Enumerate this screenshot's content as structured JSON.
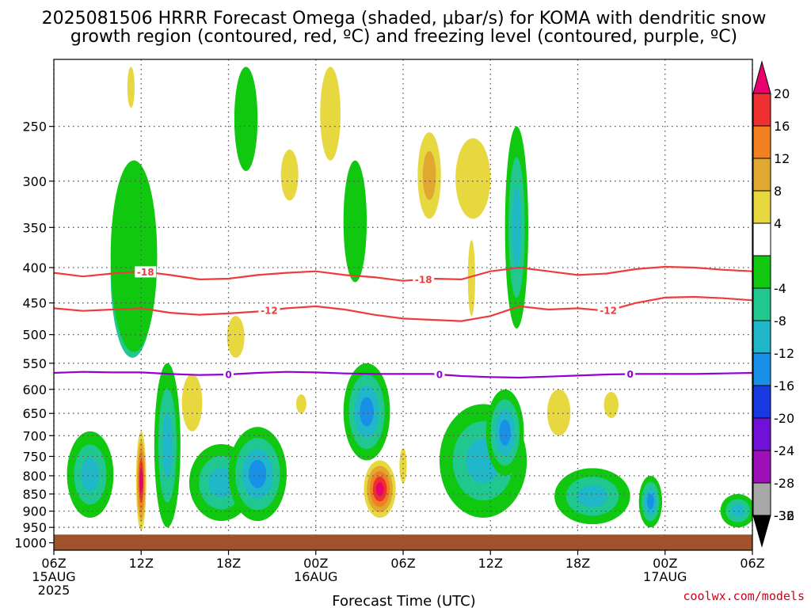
{
  "title_line1": "2025081506 HRRR Forecast Omega (shaded, μbar/s) for KOMA with dendritic snow",
  "title_line2": "growth region (contoured, red, ºC) and freezing level (contoured, purple, ºC)",
  "xlabel": "Forecast Time (UTC)",
  "credit": "coolwx.com/models",
  "colors": {
    "terrain": "#a0522d",
    "temp_contour": "#ee3b3b",
    "freezing_contour": "#9400d3",
    "grid": "#555555"
  },
  "chart_data": {
    "type": "heatmap",
    "x_ticks": [
      {
        "hour": 0,
        "lines": [
          "06Z",
          "15AUG",
          "2025"
        ]
      },
      {
        "hour": 6,
        "lines": [
          "12Z"
        ]
      },
      {
        "hour": 12,
        "lines": [
          "18Z"
        ]
      },
      {
        "hour": 18,
        "lines": [
          "00Z",
          "16AUG"
        ]
      },
      {
        "hour": 24,
        "lines": [
          "06Z"
        ]
      },
      {
        "hour": 30,
        "lines": [
          "12Z"
        ]
      },
      {
        "hour": 36,
        "lines": [
          "18Z"
        ]
      },
      {
        "hour": 42,
        "lines": [
          "00Z",
          "17AUG"
        ]
      },
      {
        "hour": 48,
        "lines": [
          "06Z"
        ]
      }
    ],
    "xlim": [
      0,
      48
    ],
    "ylim_hpa": [
      1025,
      200
    ],
    "y_scale": "log-pressure",
    "y_ticks": [
      250,
      300,
      350,
      400,
      450,
      500,
      550,
      600,
      650,
      700,
      750,
      800,
      850,
      900,
      950,
      1000
    ],
    "grid": true,
    "colorbar": {
      "labels": [
        "20",
        "16",
        "12",
        "8",
        "4",
        "-4",
        "-8",
        "-12",
        "-16",
        "-20",
        "-24",
        "-28",
        "-32",
        "-36"
      ],
      "colors": [
        "#e8006e",
        "#ee3030",
        "#f08020",
        "#e0a830",
        "#e8d840",
        "#ffffff",
        "#10c810",
        "#20c890",
        "#20b8c8",
        "#1890e8",
        "#1838e0",
        "#7010d8",
        "#a010b8",
        "#a8a8a8",
        "#000000"
      ]
    },
    "contours": [
      {
        "name": "-18",
        "color_key": "temp_contour",
        "label_hours": [
          6.3,
          25.4
        ],
        "points": [
          [
            0,
            407
          ],
          [
            2,
            412
          ],
          [
            4,
            408
          ],
          [
            6,
            405
          ],
          [
            8,
            410
          ],
          [
            10,
            416
          ],
          [
            12,
            415
          ],
          [
            14,
            410
          ],
          [
            16,
            407
          ],
          [
            18,
            405
          ],
          [
            20,
            410
          ],
          [
            22,
            413
          ],
          [
            24,
            418
          ],
          [
            26,
            415
          ],
          [
            28,
            416
          ],
          [
            30,
            405
          ],
          [
            32,
            400
          ],
          [
            34,
            405
          ],
          [
            36,
            410
          ],
          [
            38,
            408
          ],
          [
            40,
            402
          ],
          [
            42,
            399
          ],
          [
            44,
            400
          ],
          [
            46,
            403
          ],
          [
            48,
            405
          ]
        ]
      },
      {
        "name": "-12",
        "color_key": "temp_contour",
        "label_hours": [
          14.8,
          38.1
        ],
        "points": [
          [
            0,
            458
          ],
          [
            2,
            462
          ],
          [
            4,
            460
          ],
          [
            6,
            458
          ],
          [
            8,
            465
          ],
          [
            10,
            468
          ],
          [
            12,
            466
          ],
          [
            14,
            463
          ],
          [
            16,
            458
          ],
          [
            18,
            455
          ],
          [
            20,
            460
          ],
          [
            22,
            468
          ],
          [
            24,
            474
          ],
          [
            26,
            476
          ],
          [
            28,
            478
          ],
          [
            30,
            470
          ],
          [
            32,
            455
          ],
          [
            34,
            460
          ],
          [
            36,
            458
          ],
          [
            38,
            462
          ],
          [
            40,
            450
          ],
          [
            42,
            442
          ],
          [
            44,
            441
          ],
          [
            46,
            443
          ],
          [
            48,
            446
          ]
        ]
      },
      {
        "name": "0",
        "color_key": "freezing_contour",
        "label_hours": [
          12.0,
          26.5,
          39.6
        ],
        "points": [
          [
            0,
            568
          ],
          [
            2,
            566
          ],
          [
            4,
            567
          ],
          [
            6,
            567
          ],
          [
            8,
            570
          ],
          [
            10,
            572
          ],
          [
            12,
            571
          ],
          [
            14,
            568
          ],
          [
            16,
            566
          ],
          [
            18,
            567
          ],
          [
            20,
            569
          ],
          [
            22,
            570
          ],
          [
            24,
            570
          ],
          [
            26,
            570
          ],
          [
            28,
            574
          ],
          [
            30,
            576
          ],
          [
            32,
            577
          ],
          [
            34,
            575
          ],
          [
            36,
            573
          ],
          [
            38,
            571
          ],
          [
            40,
            570
          ],
          [
            42,
            570
          ],
          [
            44,
            570
          ],
          [
            46,
            569
          ],
          [
            48,
            568
          ]
        ]
      }
    ],
    "omega_features": [
      {
        "hour": 5.4,
        "p_bottom": 540,
        "p_top": 310,
        "halfwidth": 1.5,
        "levels": [
          -8,
          -12,
          -16,
          -20,
          -24,
          -28,
          -32,
          -36
        ]
      },
      {
        "hour": 5.5,
        "p_bottom": 530,
        "p_top": 280,
        "halfwidth": 1.6,
        "levels": [
          -4
        ]
      },
      {
        "hour": 6.0,
        "p_bottom": 960,
        "p_top": 690,
        "halfwidth": 0.35,
        "levels": [
          4,
          8,
          12,
          16,
          20
        ]
      },
      {
        "hour": 2.5,
        "p_bottom": 920,
        "p_top": 690,
        "halfwidth": 1.6,
        "levels": [
          -4,
          -8,
          -12
        ]
      },
      {
        "hour": 7.8,
        "p_bottom": 950,
        "p_top": 550,
        "halfwidth": 0.9,
        "levels": [
          -4,
          -8,
          -12
        ]
      },
      {
        "hour": 11.5,
        "p_bottom": 930,
        "p_top": 720,
        "halfwidth": 2.2,
        "levels": [
          -4,
          -8,
          -12
        ]
      },
      {
        "hour": 14.0,
        "p_bottom": 930,
        "p_top": 680,
        "halfwidth": 2.0,
        "levels": [
          -4,
          -8,
          -12,
          -16
        ]
      },
      {
        "hour": 21.5,
        "p_bottom": 760,
        "p_top": 550,
        "halfwidth": 1.6,
        "levels": [
          -4,
          -8,
          -12,
          -16
        ]
      },
      {
        "hour": 22.4,
        "p_bottom": 920,
        "p_top": 760,
        "halfwidth": 1.1,
        "levels": [
          4,
          8,
          12,
          16,
          20
        ]
      },
      {
        "hour": 29.5,
        "p_bottom": 920,
        "p_top": 630,
        "halfwidth": 3.0,
        "levels": [
          -4,
          -8,
          -12
        ]
      },
      {
        "hour": 31.0,
        "p_bottom": 800,
        "p_top": 600,
        "halfwidth": 1.3,
        "levels": [
          -4,
          -8,
          -12,
          -16
        ]
      },
      {
        "hour": 37.0,
        "p_bottom": 940,
        "p_top": 780,
        "halfwidth": 2.6,
        "levels": [
          -4,
          -8,
          -12
        ]
      },
      {
        "hour": 41.0,
        "p_bottom": 950,
        "p_top": 800,
        "halfwidth": 0.8,
        "levels": [
          -4,
          -8,
          -12,
          -16
        ]
      },
      {
        "hour": 47.0,
        "p_bottom": 950,
        "p_top": 850,
        "halfwidth": 1.2,
        "levels": [
          -4,
          -8,
          -12
        ]
      },
      {
        "hour": 31.8,
        "p_bottom": 490,
        "p_top": 250,
        "halfwidth": 0.8,
        "levels": [
          -4,
          -8,
          -12
        ]
      },
      {
        "hour": 20.7,
        "p_bottom": 420,
        "p_top": 280,
        "halfwidth": 0.8,
        "levels": [
          -4
        ]
      },
      {
        "hour": 13.2,
        "p_bottom": 290,
        "p_top": 205,
        "halfwidth": 0.8,
        "levels": [
          -4
        ]
      },
      {
        "hour": 19.0,
        "p_bottom": 280,
        "p_top": 205,
        "halfwidth": 0.7,
        "levels": [
          4
        ]
      },
      {
        "hour": 25.8,
        "p_bottom": 340,
        "p_top": 255,
        "halfwidth": 0.8,
        "levels": [
          4,
          8
        ]
      },
      {
        "hour": 28.8,
        "p_bottom": 340,
        "p_top": 260,
        "halfwidth": 1.2,
        "levels": [
          4
        ]
      },
      {
        "hour": 16.2,
        "p_bottom": 320,
        "p_top": 270,
        "halfwidth": 0.6,
        "levels": [
          4
        ]
      },
      {
        "hour": 9.5,
        "p_bottom": 690,
        "p_top": 570,
        "halfwidth": 0.7,
        "levels": [
          4
        ]
      },
      {
        "hour": 12.5,
        "p_bottom": 540,
        "p_top": 470,
        "halfwidth": 0.6,
        "levels": [
          4
        ]
      },
      {
        "hour": 34.7,
        "p_bottom": 700,
        "p_top": 600,
        "halfwidth": 0.8,
        "levels": [
          4
        ]
      },
      {
        "hour": 38.3,
        "p_bottom": 660,
        "p_top": 605,
        "halfwidth": 0.5,
        "levels": [
          4
        ]
      },
      {
        "hour": 28.7,
        "p_bottom": 470,
        "p_top": 365,
        "halfwidth": 0.25,
        "levels": [
          4
        ]
      },
      {
        "hour": 24.0,
        "p_bottom": 820,
        "p_top": 730,
        "halfwidth": 0.25,
        "levels": [
          4
        ]
      },
      {
        "hour": 17.0,
        "p_bottom": 650,
        "p_top": 610,
        "halfwidth": 0.35,
        "levels": [
          4
        ]
      },
      {
        "hour": 5.3,
        "p_bottom": 235,
        "p_top": 205,
        "halfwidth": 0.25,
        "levels": [
          4
        ]
      }
    ],
    "terrain_top_hpa": 973
  }
}
